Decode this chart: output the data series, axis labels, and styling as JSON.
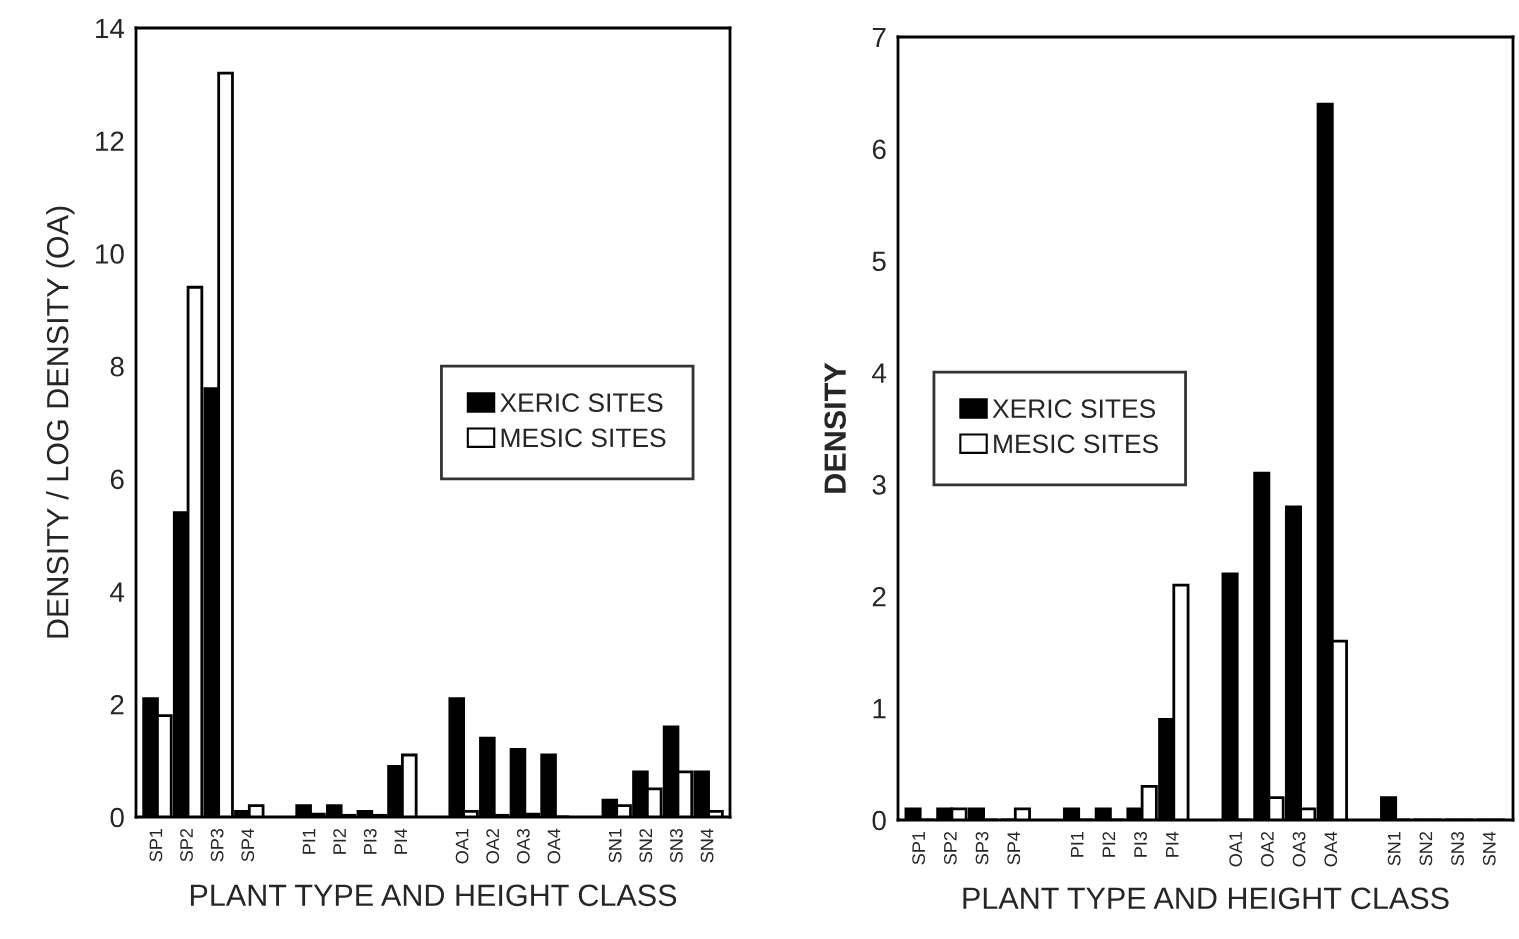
{
  "chart_data": [
    {
      "type": "bar",
      "xlabel": "PLANT TYPE AND HEIGHT CLASS",
      "ylabel": "DENSITY / LOG DENSITY (OA)",
      "ylim": [
        0,
        14
      ],
      "yticks": [
        0,
        2,
        4,
        6,
        8,
        10,
        12,
        14
      ],
      "legend": "right",
      "grid": false,
      "categories": [
        "SP1",
        "SP2",
        "SP3",
        "SP4",
        null,
        "PI1",
        "PI2",
        "PI3",
        "PI4",
        null,
        "OA1",
        "OA2",
        "OA3",
        "OA4",
        null,
        "SN1",
        "SN2",
        "SN3",
        "SN4"
      ],
      "series": [
        {
          "name": "XERIC SITES",
          "color": "#000000",
          "values": [
            2.1,
            5.4,
            7.6,
            0.1,
            null,
            0.2,
            0.2,
            0.1,
            0.9,
            null,
            2.1,
            1.4,
            1.2,
            1.1,
            null,
            0.3,
            0.8,
            1.6,
            0.8
          ]
        },
        {
          "name": "MESIC SITES",
          "color": "#ffffff",
          "values": [
            1.8,
            9.4,
            13.2,
            0.2,
            null,
            0.05,
            0.03,
            0.03,
            1.1,
            null,
            0.1,
            0.03,
            0.05,
            0,
            null,
            0.2,
            0.5,
            0.8,
            0.1
          ]
        }
      ]
    },
    {
      "type": "bar",
      "xlabel": "PLANT TYPE AND HEIGHT CLASS",
      "ylabel": "DENSITY",
      "ylim": [
        0,
        7
      ],
      "yticks": [
        0,
        1,
        2,
        3,
        4,
        5,
        6,
        7
      ],
      "legend": "left",
      "grid": false,
      "categories": [
        "SP1",
        "SP2",
        "SP3",
        "SP4",
        null,
        "PI1",
        "PI2",
        "PI3",
        "PI4",
        null,
        "OA1",
        "OA2",
        "OA3",
        "OA4",
        null,
        "SN1",
        "SN2",
        "SN3",
        "SN4"
      ],
      "series": [
        {
          "name": "XERIC SITES",
          "color": "#000000",
          "values": [
            0.1,
            0.1,
            0.1,
            0,
            null,
            0.1,
            0.1,
            0.1,
            0.9,
            null,
            2.2,
            3.1,
            2.8,
            6.4,
            null,
            0.2,
            0,
            0,
            0
          ]
        },
        {
          "name": "MESIC SITES",
          "color": "#ffffff",
          "values": [
            0,
            0.1,
            0,
            0.1,
            null,
            0,
            0,
            0.3,
            2.1,
            null,
            0,
            0.2,
            0.1,
            1.6,
            null,
            0,
            0,
            0,
            0
          ]
        }
      ]
    }
  ]
}
